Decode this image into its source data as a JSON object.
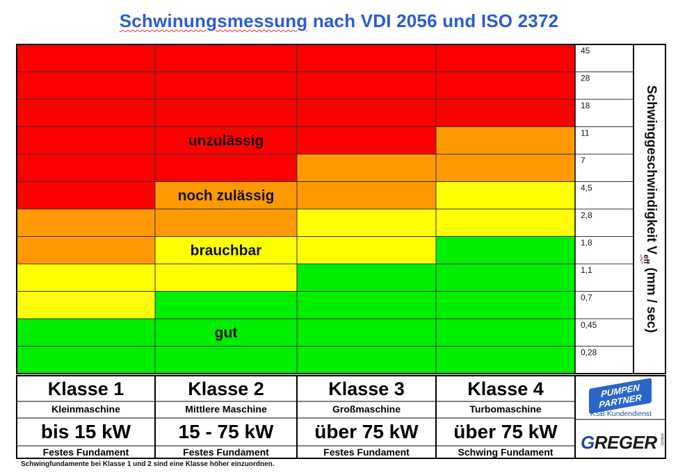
{
  "title": "Schwinungsmessung nach VDI 2056 und ISO 2372",
  "title_misspelled_word": "Schwinungsmessung",
  "title_rest": " nach VDI 2056 und ISO 2372",
  "colors": {
    "red": "#ff0000",
    "orange": "#ff9900",
    "yellow": "#ffff00",
    "green": "#00ee00",
    "title": "#2a5bd7",
    "border": "#000000"
  },
  "chart_data": {
    "type": "heatmap",
    "title": "Schwinungsmessung nach VDI 2056 und ISO 2372",
    "ylabel_main": "Schwinggeschwindigkeit V",
    "ylabel_sub": "eff",
    "ylabel_unit": " (mm / sec)",
    "y_ticks": [
      "45",
      "28",
      "18",
      "11",
      "7",
      "4,5",
      "2,8",
      "1,8",
      "1,1",
      "0,7",
      "0,45",
      "0,28"
    ],
    "columns": [
      "Klasse 1",
      "Klasse 2",
      "Klasse 3",
      "Klasse 4"
    ],
    "rows_top_to_bottom": [
      [
        "red",
        "red",
        "red",
        "red"
      ],
      [
        "red",
        "red",
        "red",
        "red"
      ],
      [
        "red",
        "red",
        "red",
        "red"
      ],
      [
        "red",
        "red",
        "red",
        "orange"
      ],
      [
        "red",
        "red",
        "orange",
        "orange"
      ],
      [
        "red",
        "orange",
        "orange",
        "yellow"
      ],
      [
        "orange",
        "orange",
        "yellow",
        "yellow"
      ],
      [
        "orange",
        "yellow",
        "yellow",
        "green"
      ],
      [
        "yellow",
        "yellow",
        "green",
        "green"
      ],
      [
        "yellow",
        "green",
        "green",
        "green"
      ],
      [
        "green",
        "green",
        "green",
        "green"
      ],
      [
        "green",
        "green",
        "green",
        "green"
      ]
    ],
    "zone_labels": [
      {
        "text": "unzulässig",
        "row": 3,
        "col": 1
      },
      {
        "text": "noch zulässig",
        "row": 5,
        "col": 1
      },
      {
        "text": "brauchbar",
        "row": 7,
        "col": 1
      },
      {
        "text": "gut",
        "row": 10,
        "col": 1
      }
    ]
  },
  "classes": [
    {
      "name": "Klasse 1",
      "desc": "Kleinmaschine",
      "power": "bis 15 kW",
      "foundation": "Festes Fundament"
    },
    {
      "name": "Klasse 2",
      "desc": "Mittlere Maschine",
      "power": "15 - 75 kW",
      "foundation": "Festes Fundament"
    },
    {
      "name": "Klasse 3",
      "desc": "Großmaschine",
      "power": "über 75 kW",
      "foundation": "Festes Fundament"
    },
    {
      "name": "Klasse 4",
      "desc": "Turbomaschine",
      "power": "über 75 kW",
      "foundation": "Schwing Fundament"
    }
  ],
  "footnote": "Schwingfundamente bei Klasse 1 und 2 sind eine Klasse höher einzuordnen.",
  "logos": {
    "pumpen_line1": "PUMPEN",
    "pumpen_line2": "PARTNER",
    "pumpen_sub": "KSB Kundendienst",
    "greger_g": "G",
    "greger_rest": "REGER",
    "greger_gmbh": "GmbH"
  }
}
